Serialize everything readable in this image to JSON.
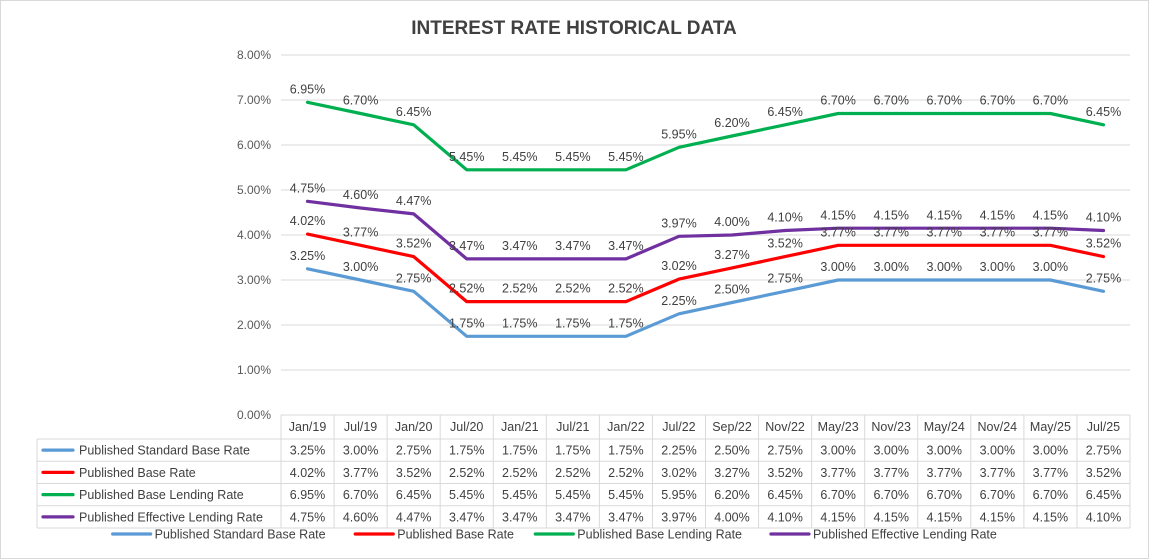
{
  "chart_data": {
    "type": "line",
    "title": "INTEREST RATE HISTORICAL DATA",
    "categories": [
      "Jan/19",
      "Jul/19",
      "Jan/20",
      "Jul/20",
      "Jan/21",
      "Jul/21",
      "Jan/22",
      "Jul/22",
      "Sep/22",
      "Nov/22",
      "May/23",
      "Nov/23",
      "May/24",
      "Nov/24",
      "May/25",
      "Jul/25"
    ],
    "yticks": [
      "0.00%",
      "1.00%",
      "2.00%",
      "3.00%",
      "4.00%",
      "5.00%",
      "6.00%",
      "7.00%",
      "8.00%"
    ],
    "ylim": [
      0,
      8
    ],
    "grid": true,
    "data_table": true,
    "legend": "bottom",
    "series": [
      {
        "name": "Published Standard Base Rate",
        "color": "#5b9bd5",
        "values": [
          3.25,
          3.0,
          2.75,
          1.75,
          1.75,
          1.75,
          1.75,
          2.25,
          2.5,
          2.75,
          3.0,
          3.0,
          3.0,
          3.0,
          3.0,
          2.75
        ],
        "labels": [
          "3.25%",
          "3.00%",
          "2.75%",
          "1.75%",
          "1.75%",
          "1.75%",
          "1.75%",
          "2.25%",
          "2.50%",
          "2.75%",
          "3.00%",
          "3.00%",
          "3.00%",
          "3.00%",
          "3.00%",
          "2.75%"
        ]
      },
      {
        "name": "Published Base Rate",
        "color": "#ff0000",
        "values": [
          4.02,
          3.77,
          3.52,
          2.52,
          2.52,
          2.52,
          2.52,
          3.02,
          3.27,
          3.52,
          3.77,
          3.77,
          3.77,
          3.77,
          3.77,
          3.52
        ],
        "labels": [
          "4.02%",
          "3.77%",
          "3.52%",
          "2.52%",
          "2.52%",
          "2.52%",
          "2.52%",
          "3.02%",
          "3.27%",
          "3.52%",
          "3.77%",
          "3.77%",
          "3.77%",
          "3.77%",
          "3.77%",
          "3.52%"
        ]
      },
      {
        "name": "Published Base Lending Rate",
        "color": "#00b050",
        "values": [
          6.95,
          6.7,
          6.45,
          5.45,
          5.45,
          5.45,
          5.45,
          5.95,
          6.2,
          6.45,
          6.7,
          6.7,
          6.7,
          6.7,
          6.7,
          6.45
        ],
        "labels": [
          "6.95%",
          "6.70%",
          "6.45%",
          "5.45%",
          "5.45%",
          "5.45%",
          "5.45%",
          "5.95%",
          "6.20%",
          "6.45%",
          "6.70%",
          "6.70%",
          "6.70%",
          "6.70%",
          "6.70%",
          "6.45%"
        ]
      },
      {
        "name": "Published Effective Lending Rate",
        "color": "#7030a0",
        "values": [
          4.75,
          4.6,
          4.47,
          3.47,
          3.47,
          3.47,
          3.47,
          3.97,
          4.0,
          4.1,
          4.15,
          4.15,
          4.15,
          4.15,
          4.15,
          4.1
        ],
        "labels": [
          "4.75%",
          "4.60%",
          "4.47%",
          "3.47%",
          "3.47%",
          "3.47%",
          "3.47%",
          "3.97%",
          "4.00%",
          "4.10%",
          "4.15%",
          "4.15%",
          "4.15%",
          "4.15%",
          "4.15%",
          "4.10%"
        ]
      }
    ]
  }
}
